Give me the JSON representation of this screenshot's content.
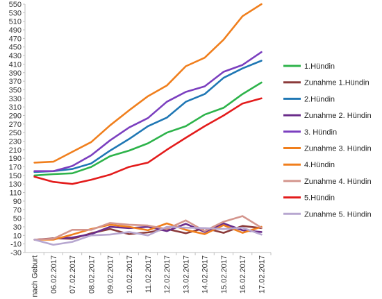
{
  "chart_data": {
    "type": "line",
    "categories": [
      "nach Geburt",
      "06.02.2017",
      "07.02.2017",
      "08.02.2017",
      "09.02.2017",
      "10.02.2017",
      "11.02.2017",
      "12.02.2017",
      "13.02.2017",
      "14.02.2017",
      "15.02.2017",
      "16.02.2017",
      "17.02.2017"
    ],
    "ylim": [
      -30,
      550
    ],
    "ytick_step": 20,
    "grid": false,
    "legend_position": "right",
    "series": [
      {
        "name": "1.Hündin",
        "color": "#2db34a",
        "values": [
          150,
          153,
          155,
          170,
          195,
          208,
          225,
          250,
          265,
          292,
          308,
          340,
          367
        ]
      },
      {
        "name": "Zunahme 1.Hündin",
        "color": "#8b3a3a",
        "values": [
          0,
          3,
          2,
          15,
          25,
          13,
          17,
          25,
          15,
          27,
          16,
          32,
          27
        ]
      },
      {
        "name": "2.Hündin",
        "color": "#1f77b4",
        "values": [
          158,
          160,
          165,
          178,
          208,
          235,
          265,
          285,
          322,
          340,
          378,
          400,
          418
        ]
      },
      {
        "name": "Zunahme 2. Hündin",
        "color": "#6a2c8a",
        "values": [
          0,
          2,
          5,
          13,
          30,
          27,
          30,
          20,
          37,
          18,
          38,
          22,
          18
        ]
      },
      {
        "name": "3. Hündin",
        "color": "#7b3fbf",
        "values": [
          160,
          160,
          172,
          197,
          232,
          262,
          284,
          322,
          345,
          358,
          392,
          408,
          438
        ]
      },
      {
        "name": "Zunahme 3. Hündin",
        "color": "#f07f1d",
        "values": [
          0,
          0,
          12,
          25,
          35,
          30,
          22,
          38,
          23,
          13,
          34,
          16,
          30
        ]
      },
      {
        "name": "4.Hündin",
        "color": "#f07f1d",
        "values": [
          180,
          182,
          205,
          228,
          267,
          302,
          335,
          360,
          405,
          425,
          467,
          522,
          550
        ]
      },
      {
        "name": "Zunahme 4. Hündin",
        "color": "#d4968e",
        "values": [
          0,
          2,
          23,
          23,
          39,
          35,
          33,
          25,
          45,
          20,
          42,
          55,
          28
        ]
      },
      {
        "name": "5.Hündin",
        "color": "#e31b1b",
        "values": [
          147,
          135,
          130,
          140,
          152,
          170,
          180,
          210,
          238,
          265,
          290,
          318,
          330
        ]
      },
      {
        "name": "Zunahme 5. Hündin",
        "color": "#b7a7d0",
        "values": [
          0,
          -12,
          -5,
          10,
          12,
          18,
          10,
          30,
          28,
          27,
          25,
          28,
          12
        ]
      }
    ]
  }
}
